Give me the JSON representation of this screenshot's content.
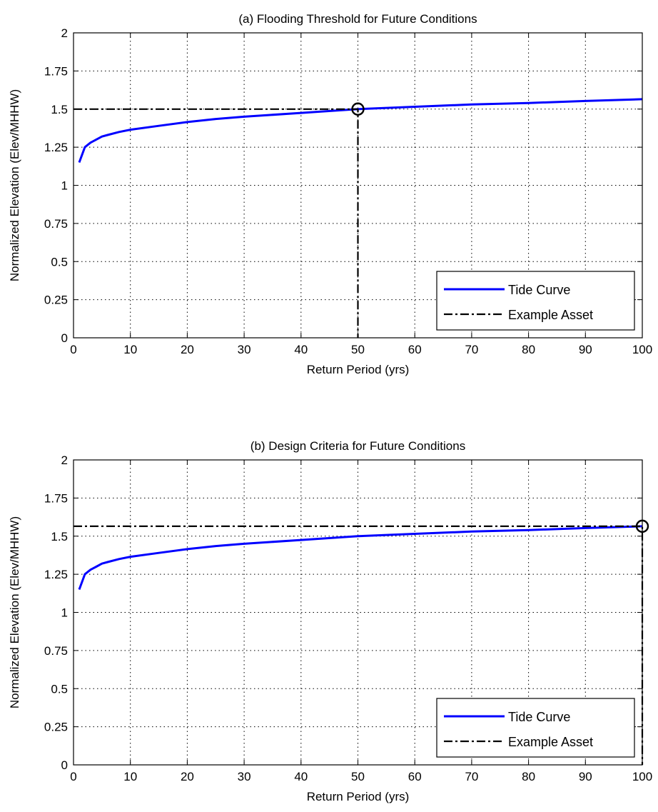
{
  "chart_data": [
    {
      "type": "line",
      "title": "(a) Flooding Threshold for Future Conditions",
      "xlabel": "Return Period (yrs)",
      "ylabel": "Normalized Elevation (Elev/MHHW)",
      "xlim": [
        0,
        100
      ],
      "ylim": [
        0,
        2
      ],
      "xticks": [
        "0",
        "10",
        "20",
        "30",
        "40",
        "50",
        "60",
        "70",
        "80",
        "90",
        "100"
      ],
      "yticks": [
        "0",
        "0.25",
        "0.5",
        "0.75",
        "1",
        "1.25",
        "1.5",
        "1.75",
        "2"
      ],
      "grid": true,
      "legend_position": "bottom-right",
      "series": [
        {
          "name": "Tide Curve",
          "color": "#0000ff",
          "style": "solid",
          "x": [
            1,
            2,
            3,
            4,
            5,
            6,
            8,
            10,
            15,
            20,
            25,
            30,
            40,
            50,
            60,
            70,
            80,
            90,
            100
          ],
          "y": [
            1.15,
            1.25,
            1.28,
            1.3,
            1.32,
            1.33,
            1.35,
            1.365,
            1.39,
            1.415,
            1.435,
            1.45,
            1.475,
            1.5,
            1.515,
            1.53,
            1.54,
            1.553,
            1.565
          ]
        },
        {
          "name": "Example Asset",
          "color": "#000000",
          "style": "dash-dot",
          "x": [
            0,
            50,
            50
          ],
          "y": [
            1.5,
            1.5,
            0
          ]
        }
      ],
      "marker": {
        "x": 50,
        "y": 1.5,
        "shape": "circle"
      }
    },
    {
      "type": "line",
      "title": "(b) Design Criteria for Future Conditions",
      "xlabel": "Return Period (yrs)",
      "ylabel": "Normalized Elevation (Elev/MHHW)",
      "xlim": [
        0,
        100
      ],
      "ylim": [
        0,
        2
      ],
      "xticks": [
        "0",
        "10",
        "20",
        "30",
        "40",
        "50",
        "60",
        "70",
        "80",
        "90",
        "100"
      ],
      "yticks": [
        "0",
        "0.25",
        "0.5",
        "0.75",
        "1",
        "1.25",
        "1.5",
        "1.75",
        "2"
      ],
      "grid": true,
      "legend_position": "bottom-right",
      "series": [
        {
          "name": "Tide Curve",
          "color": "#0000ff",
          "style": "solid",
          "x": [
            1,
            2,
            3,
            4,
            5,
            6,
            8,
            10,
            15,
            20,
            25,
            30,
            40,
            50,
            60,
            70,
            80,
            90,
            100
          ],
          "y": [
            1.15,
            1.25,
            1.28,
            1.3,
            1.32,
            1.33,
            1.35,
            1.365,
            1.39,
            1.415,
            1.435,
            1.45,
            1.475,
            1.5,
            1.515,
            1.53,
            1.54,
            1.553,
            1.565
          ]
        },
        {
          "name": "Example Asset",
          "color": "#000000",
          "style": "dash-dot",
          "x": [
            0,
            100,
            100
          ],
          "y": [
            1.565,
            1.565,
            0
          ]
        }
      ],
      "marker": {
        "x": 100,
        "y": 1.565,
        "shape": "circle"
      }
    }
  ]
}
